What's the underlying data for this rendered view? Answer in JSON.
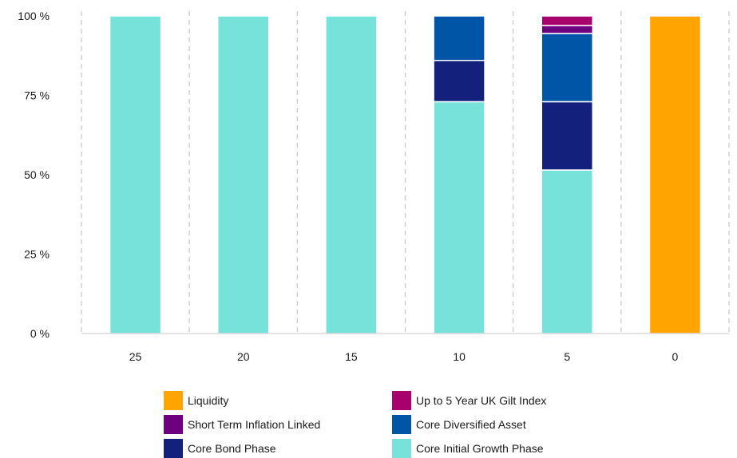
{
  "chart_data": {
    "type": "bar",
    "stacked": true,
    "categories": [
      "25",
      "20",
      "15",
      "10",
      "5",
      "0"
    ],
    "y_ticks": [
      "0 %",
      "25 %",
      "50 %",
      "75 %",
      "100 %"
    ],
    "ylim": [
      0,
      100
    ],
    "grid": "vertical dashed separators",
    "legend_position": "bottom",
    "series": [
      {
        "name": "Core Initial Growth Phase",
        "color": "#76e2d9",
        "values": [
          100,
          100,
          100,
          73,
          51.5,
          0
        ]
      },
      {
        "name": "Core Bond Phase",
        "color": "#13217c",
        "values": [
          0,
          0,
          0,
          13,
          21.5,
          0
        ]
      },
      {
        "name": "Core Diversified Asset",
        "color": "#0055a6",
        "values": [
          0,
          0,
          0,
          14,
          21.5,
          0
        ]
      },
      {
        "name": "Short Term Inflation Linked",
        "color": "#6e0080",
        "values": [
          0,
          0,
          0,
          0,
          2.5,
          0
        ]
      },
      {
        "name": "Up to 5 Year UK Gilt Index",
        "color": "#a8006d",
        "values": [
          0,
          0,
          0,
          0,
          3,
          0
        ]
      },
      {
        "name": "Liquidity",
        "color": "#ffa400",
        "values": [
          0,
          0,
          0,
          0,
          0,
          100
        ]
      }
    ]
  },
  "legend": [
    {
      "label": "Liquidity",
      "color": "#ffa400"
    },
    {
      "label": "Up to 5 Year UK Gilt Index",
      "color": "#a8006d"
    },
    {
      "label": "Short Term Inflation Linked",
      "color": "#6e0080"
    },
    {
      "label": "Core Diversified Asset",
      "color": "#0055a6"
    },
    {
      "label": "Core Bond Phase",
      "color": "#13217c"
    },
    {
      "label": "Core Initial Growth Phase",
      "color": "#76e2d9"
    }
  ]
}
